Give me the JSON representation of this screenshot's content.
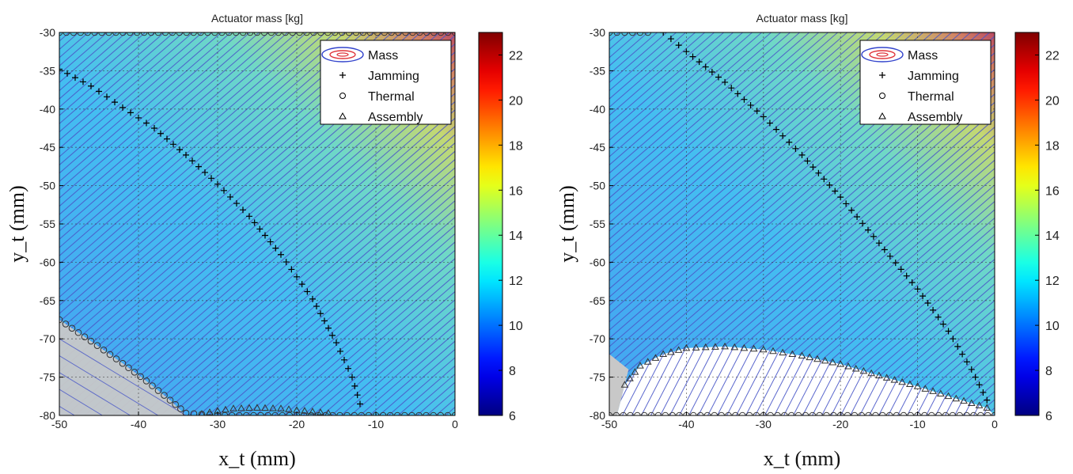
{
  "chart_data": [
    {
      "type": "contour",
      "title": "Actuator mass [kg]",
      "xlabel": "x_t (mm)",
      "ylabel": "y_t (mm)",
      "xlim": [
        -50,
        0
      ],
      "ylim": [
        -80,
        -30
      ],
      "xticks": [
        -50,
        -40,
        -30,
        -20,
        -10,
        0
      ],
      "yticks": [
        -30,
        -35,
        -40,
        -45,
        -50,
        -55,
        -60,
        -65,
        -70,
        -75,
        -80
      ],
      "grid": true,
      "legend": {
        "position": "top-right",
        "entries": [
          "Mass",
          "Jamming",
          "Thermal",
          "Assembly"
        ]
      },
      "colorbar": {
        "range": [
          6,
          23
        ],
        "ticks": [
          6,
          8,
          10,
          12,
          14,
          16,
          18,
          20,
          22
        ],
        "colormap": "jet"
      },
      "series": [
        {
          "name": "Jamming",
          "marker": "+",
          "points": [
            [
              -50,
              -34.8
            ],
            [
              -46,
              -37
            ],
            [
              -42,
              -39.8
            ],
            [
              -38,
              -42.5
            ],
            [
              -34,
              -46
            ],
            [
              -30,
              -49.8
            ],
            [
              -26,
              -54
            ],
            [
              -22,
              -59
            ],
            [
              -18,
              -64.8
            ],
            [
              -15,
              -70.5
            ],
            [
              -13,
              -75
            ],
            [
              -12,
              -78.5
            ]
          ]
        },
        {
          "name": "Thermal",
          "marker": "o",
          "points": [
            [
              -50,
              -67.5
            ],
            [
              -46,
              -70.3
            ],
            [
              -42,
              -73.2
            ],
            [
              -39,
              -75.5
            ],
            [
              -36,
              -78
            ],
            [
              -34,
              -79.7
            ],
            [
              -30,
              -80
            ],
            [
              -20,
              -80
            ],
            [
              -10,
              -80
            ],
            [
              0,
              -80
            ]
          ],
          "top_boundary": [
            [
              -50,
              -30
            ],
            [
              0,
              -30
            ]
          ]
        },
        {
          "name": "Assembly",
          "marker": "^",
          "points": [
            [
              -32,
              -79.8
            ],
            [
              -30,
              -79.4
            ],
            [
              -28,
              -79.1
            ],
            [
              -25,
              -79
            ],
            [
              -22,
              -79.1
            ],
            [
              -19,
              -79.4
            ],
            [
              -16,
              -79.7
            ]
          ]
        }
      ]
    },
    {
      "type": "contour",
      "title": "Actuator mass [kg]",
      "xlabel": "x_t (mm)",
      "ylabel": "y_t (mm)",
      "xlim": [
        -50,
        0
      ],
      "ylim": [
        -80,
        -30
      ],
      "xticks": [
        -50,
        -40,
        -30,
        -20,
        -10,
        0
      ],
      "yticks": [
        -30,
        -35,
        -40,
        -45,
        -50,
        -55,
        -60,
        -65,
        -70,
        -75,
        -80
      ],
      "grid": true,
      "legend": {
        "position": "top-right",
        "entries": [
          "Mass",
          "Jamming",
          "Thermal",
          "Assembly"
        ]
      },
      "colorbar": {
        "range": [
          6,
          23
        ],
        "ticks": [
          6,
          8,
          10,
          12,
          14,
          16,
          18,
          20,
          22
        ],
        "colormap": "jet"
      },
      "series": [
        {
          "name": "Jamming",
          "marker": "+",
          "points": [
            [
              -43,
              -30
            ],
            [
              -40,
              -32.5
            ],
            [
              -35,
              -36.5
            ],
            [
              -30,
              -41
            ],
            [
              -25,
              -46
            ],
            [
              -20,
              -51.5
            ],
            [
              -15,
              -57.5
            ],
            [
              -10,
              -63.5
            ],
            [
              -6,
              -69
            ],
            [
              -3,
              -74
            ],
            [
              -1,
              -78
            ]
          ]
        },
        {
          "name": "Thermal",
          "marker": "o",
          "points": [
            [
              -50,
              -80
            ],
            [
              -40,
              -80
            ],
            [
              -30,
              -80
            ],
            [
              -20,
              -80
            ],
            [
              -10,
              -80
            ],
            [
              0,
              -80
            ]
          ],
          "top_boundary": [
            [
              -50,
              -30
            ],
            [
              -45,
              -30
            ]
          ]
        },
        {
          "name": "Assembly",
          "marker": "^",
          "points": [
            [
              -48,
              -76
            ],
            [
              -46,
              -73.5
            ],
            [
              -43,
              -72
            ],
            [
              -40,
              -71.2
            ],
            [
              -35,
              -71
            ],
            [
              -30,
              -71.4
            ],
            [
              -25,
              -72.2
            ],
            [
              -20,
              -73.3
            ],
            [
              -15,
              -74.8
            ],
            [
              -10,
              -76.2
            ],
            [
              -5,
              -77.8
            ],
            [
              -1,
              -79
            ]
          ]
        }
      ]
    }
  ]
}
